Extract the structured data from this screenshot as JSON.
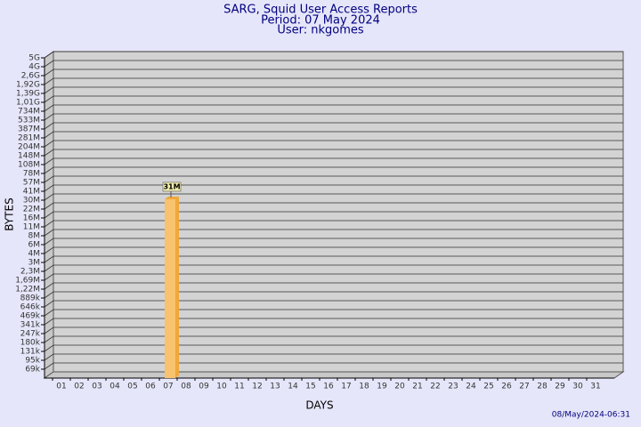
{
  "chart_data": {
    "type": "bar",
    "title": "SARG, Squid User Access Reports",
    "subtitle": "Period: 07 May 2024",
    "user": "User: nkgomes",
    "x_label": "DAYS",
    "y_label": "BYTES",
    "footer": "08/May/2024-06:31",
    "categories": [
      "01",
      "02",
      "03",
      "04",
      "05",
      "06",
      "07",
      "08",
      "09",
      "10",
      "11",
      "12",
      "13",
      "14",
      "15",
      "16",
      "17",
      "18",
      "19",
      "20",
      "21",
      "22",
      "23",
      "24",
      "25",
      "26",
      "27",
      "28",
      "29",
      "30",
      "31"
    ],
    "values": [
      null,
      null,
      null,
      null,
      null,
      null,
      31000000,
      null,
      null,
      null,
      null,
      null,
      null,
      null,
      null,
      null,
      null,
      null,
      null,
      null,
      null,
      null,
      null,
      null,
      null,
      null,
      null,
      null,
      null,
      null,
      null
    ],
    "value_labels": [
      null,
      null,
      null,
      null,
      null,
      null,
      "31M",
      null,
      null,
      null,
      null,
      null,
      null,
      null,
      null,
      null,
      null,
      null,
      null,
      null,
      null,
      null,
      null,
      null,
      null,
      null,
      null,
      null,
      null,
      null,
      null
    ],
    "color": "#f9c26e",
    "side_color": "#f0a83a",
    "ylim": [
      50000,
      5000000000
    ],
    "yticks": [
      {
        "value": 69000,
        "label": "69k"
      },
      {
        "value": 95000,
        "label": "95k"
      },
      {
        "value": 131000,
        "label": "131k"
      },
      {
        "value": 180000,
        "label": "180k"
      },
      {
        "value": 247000,
        "label": "247k"
      },
      {
        "value": 341000,
        "label": "341k"
      },
      {
        "value": 469000,
        "label": "469k"
      },
      {
        "value": 646000,
        "label": "646k"
      },
      {
        "value": 889000,
        "label": "889k"
      },
      {
        "value": 1220000,
        "label": "1,22M"
      },
      {
        "value": 1690000,
        "label": "1,69M"
      },
      {
        "value": 2300000,
        "label": "2,3M"
      },
      {
        "value": 3000000,
        "label": "3M"
      },
      {
        "value": 4000000,
        "label": "4M"
      },
      {
        "value": 6000000,
        "label": "6M"
      },
      {
        "value": 8000000,
        "label": "8M"
      },
      {
        "value": 11000000,
        "label": "11M"
      },
      {
        "value": 16000000,
        "label": "16M"
      },
      {
        "value": 22000000,
        "label": "22M"
      },
      {
        "value": 30000000,
        "label": "30M"
      },
      {
        "value": 41000000,
        "label": "41M"
      },
      {
        "value": 57000000,
        "label": "57M"
      },
      {
        "value": 78000000,
        "label": "78M"
      },
      {
        "value": 108000000,
        "label": "108M"
      },
      {
        "value": 148000000,
        "label": "148M"
      },
      {
        "value": 204000000,
        "label": "204M"
      },
      {
        "value": 281000000,
        "label": "281M"
      },
      {
        "value": 387000000,
        "label": "387M"
      },
      {
        "value": 533000000,
        "label": "533M"
      },
      {
        "value": 734000000,
        "label": "734M"
      },
      {
        "value": 1010000000,
        "label": "1,01G"
      },
      {
        "value": 1390000000,
        "label": "1,39G"
      },
      {
        "value": 1920000000,
        "label": "1,92G"
      },
      {
        "value": 2600000000,
        "label": "2,6G"
      },
      {
        "value": 4000000000,
        "label": "4G"
      },
      {
        "value": 5000000000,
        "label": "5G"
      }
    ],
    "grid": true
  }
}
